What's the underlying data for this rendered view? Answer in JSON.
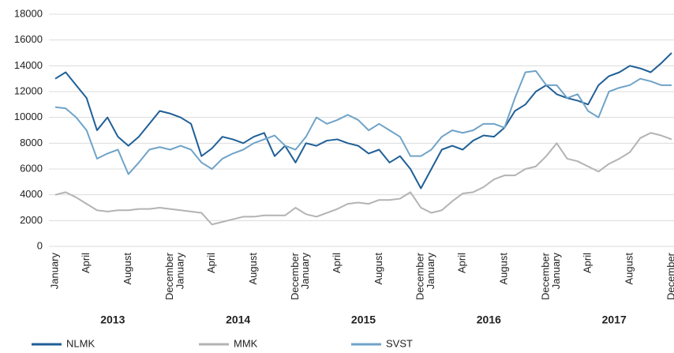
{
  "chart_data": {
    "type": "line",
    "categories": [
      "January",
      null,
      null,
      "April",
      null,
      null,
      null,
      "August",
      null,
      null,
      null,
      "December",
      "January",
      null,
      null,
      "April",
      null,
      null,
      null,
      "August",
      null,
      null,
      null,
      "December",
      "January",
      null,
      null,
      "April",
      null,
      null,
      null,
      "August",
      null,
      null,
      null,
      "December",
      "January",
      null,
      null,
      "April",
      null,
      null,
      null,
      "August",
      null,
      null,
      null,
      "December",
      "January",
      null,
      null,
      "April",
      null,
      null,
      null,
      "August",
      null,
      null,
      null,
      "December"
    ],
    "years": [
      "2013",
      "2014",
      "2015",
      "2016",
      "2017"
    ],
    "series": [
      {
        "name": "NLMK",
        "color": "#1f5f96",
        "values": [
          13000,
          13500,
          12500,
          11500,
          9000,
          10000,
          8500,
          7800,
          8500,
          9500,
          10500,
          10300,
          10000,
          9500,
          7000,
          7600,
          8500,
          8300,
          8000,
          8500,
          8800,
          7000,
          7800,
          6500,
          8000,
          7800,
          8200,
          8300,
          8000,
          7800,
          7200,
          7500,
          6500,
          7000,
          6000,
          4500,
          6000,
          7500,
          7800,
          7500,
          8200,
          8600,
          8500,
          9200,
          10500,
          11000,
          12000,
          12500,
          11800,
          11500,
          11300,
          11000,
          12500,
          13200,
          13500,
          14000,
          13800,
          13500,
          14200,
          15000
        ]
      },
      {
        "name": "MMK",
        "color": "#b3b3b3",
        "values": [
          4000,
          4200,
          3800,
          3300,
          2800,
          2700,
          2800,
          2800,
          2900,
          2900,
          3000,
          2900,
          2800,
          2700,
          2600,
          1700,
          1900,
          2100,
          2300,
          2300,
          2400,
          2400,
          2400,
          3000,
          2500,
          2300,
          2600,
          2900,
          3300,
          3400,
          3300,
          3600,
          3600,
          3700,
          4200,
          3000,
          2600,
          2800,
          3500,
          4100,
          4200,
          4600,
          5200,
          5500,
          5500,
          6000,
          6200,
          7000,
          8000,
          6800,
          6600,
          6200,
          5800,
          6400,
          6800,
          7300,
          8400,
          8800,
          8600,
          8300
        ]
      },
      {
        "name": "SVST",
        "color": "#6fa3c8",
        "values": [
          10800,
          10700,
          10000,
          9000,
          6800,
          7200,
          7500,
          5600,
          6500,
          7500,
          7700,
          7500,
          7800,
          7500,
          6500,
          6000,
          6800,
          7200,
          7500,
          8000,
          8300,
          8600,
          7800,
          7500,
          8500,
          10000,
          9500,
          9800,
          10200,
          9800,
          9000,
          9500,
          9000,
          8500,
          7000,
          7000,
          7500,
          8500,
          9000,
          8800,
          9000,
          9500,
          9500,
          9200,
          11500,
          13500,
          13600,
          12500,
          12500,
          11500,
          11800,
          10500,
          10000,
          12000,
          12300,
          12500,
          13000,
          12800,
          12500,
          12500
        ]
      }
    ],
    "ylim": [
      0,
      18000
    ],
    "yticks": [
      0,
      2000,
      4000,
      6000,
      8000,
      10000,
      12000,
      14000,
      16000,
      18000
    ],
    "grid": true
  }
}
